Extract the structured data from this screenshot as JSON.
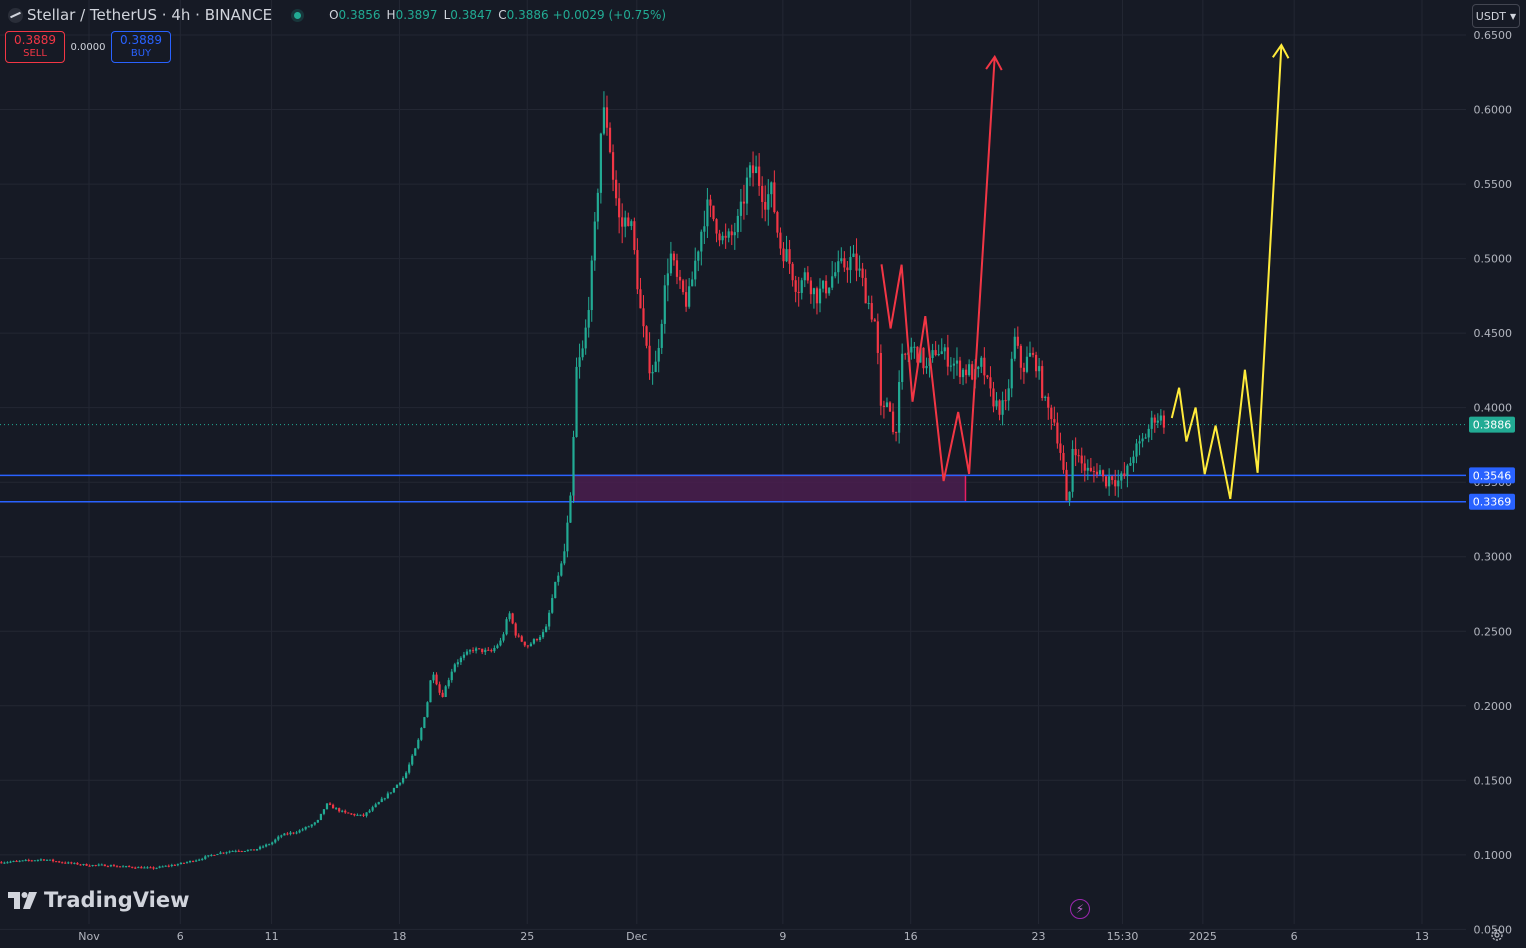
{
  "header": {
    "symbol_title": "Stellar / TetherUS · 4h · BINANCE",
    "ohlc": {
      "o_label": "O",
      "o": "0.3856",
      "h_label": "H",
      "h": "0.3897",
      "l_label": "L",
      "l": "0.3847",
      "c_label": "C",
      "c": "0.3886",
      "change": "+0.0029 (+0.75%)"
    }
  },
  "trade": {
    "sell_price": "0.3889",
    "sell_label": "SELL",
    "spread": "0.0000",
    "buy_price": "0.3889",
    "buy_label": "BUY"
  },
  "currency": "USDT",
  "logo_text": "TradingView",
  "colors": {
    "background": "#161a25",
    "grid": "#232733",
    "up": "#22ab94",
    "down": "#f23645",
    "level_line": "#2962ff",
    "zone_fill": "#4a1e4f",
    "zone_border": "#e91e63",
    "projection_red": "#f23645",
    "projection_yellow": "#ffeb3b",
    "axis_text": "#b2b5be"
  },
  "chart_data": {
    "type": "candlestick",
    "symbol": "XLMUSDT",
    "interval": "4h",
    "exchange": "BINANCE",
    "ylim": [
      0.0375,
      0.6735
    ],
    "y_ticks": [
      "0.6500",
      "0.6000",
      "0.5500",
      "0.5000",
      "0.4500",
      "0.4000",
      "0.3500",
      "0.3000",
      "0.2500",
      "0.2000",
      "0.1500",
      "0.1000",
      "0.0500"
    ],
    "x_ticks": [
      {
        "label": "Nov",
        "day": 0
      },
      {
        "label": "6",
        "day": 5
      },
      {
        "label": "11",
        "day": 10
      },
      {
        "label": "18",
        "day": 17
      },
      {
        "label": "25",
        "day": 24
      },
      {
        "label": "Dec",
        "day": 30
      },
      {
        "label": "9",
        "day": 38
      },
      {
        "label": "16",
        "day": 45
      },
      {
        "label": "23",
        "day": 52
      },
      {
        "label": "15:30",
        "day": 56.6
      },
      {
        "label": "2025",
        "day": 61
      },
      {
        "label": "6",
        "day": 66
      },
      {
        "label": "13",
        "day": 73
      }
    ],
    "price_path": [
      [
        -4.8,
        0.095
      ],
      [
        -3.5,
        0.096
      ],
      [
        -2.5,
        0.097
      ],
      [
        -1.5,
        0.095
      ],
      [
        0,
        0.093
      ],
      [
        1,
        0.093
      ],
      [
        2,
        0.092
      ],
      [
        3.5,
        0.091
      ],
      [
        5,
        0.094
      ],
      [
        6,
        0.097
      ],
      [
        7,
        0.101
      ],
      [
        8,
        0.103
      ],
      [
        9,
        0.103
      ],
      [
        10,
        0.108
      ],
      [
        10.5,
        0.113
      ],
      [
        11.5,
        0.116
      ],
      [
        12.5,
        0.122
      ],
      [
        13,
        0.134
      ],
      [
        14,
        0.128
      ],
      [
        15,
        0.126
      ],
      [
        15.5,
        0.131
      ],
      [
        16.5,
        0.142
      ],
      [
        17.3,
        0.153
      ],
      [
        18,
        0.175
      ],
      [
        18.5,
        0.2
      ],
      [
        18.8,
        0.225
      ],
      [
        19.3,
        0.205
      ],
      [
        20,
        0.228
      ],
      [
        21,
        0.238
      ],
      [
        22,
        0.236
      ],
      [
        22.6,
        0.244
      ],
      [
        23,
        0.263
      ],
      [
        23.4,
        0.247
      ],
      [
        24,
        0.24
      ],
      [
        25,
        0.25
      ],
      [
        25.5,
        0.28
      ],
      [
        26,
        0.3
      ],
      [
        26.4,
        0.34
      ],
      [
        26.7,
        0.425
      ],
      [
        27.1,
        0.44
      ],
      [
        27.6,
        0.5
      ],
      [
        27.9,
        0.555
      ],
      [
        28.1,
        0.6
      ],
      [
        28.4,
        0.59
      ],
      [
        28.7,
        0.555
      ],
      [
        29.1,
        0.52
      ],
      [
        29.6,
        0.53
      ],
      [
        29.9,
        0.5
      ],
      [
        30.2,
        0.465
      ],
      [
        30.6,
        0.43
      ],
      [
        31.0,
        0.425
      ],
      [
        31.4,
        0.465
      ],
      [
        31.8,
        0.505
      ],
      [
        32.3,
        0.48
      ],
      [
        32.8,
        0.47
      ],
      [
        33.3,
        0.505
      ],
      [
        33.8,
        0.535
      ],
      [
        34.3,
        0.525
      ],
      [
        34.8,
        0.51
      ],
      [
        35.2,
        0.515
      ],
      [
        35.6,
        0.525
      ],
      [
        36.1,
        0.555
      ],
      [
        36.5,
        0.56
      ],
      [
        37.0,
        0.54
      ],
      [
        37.4,
        0.545
      ],
      [
        37.8,
        0.51
      ],
      [
        38.3,
        0.5
      ],
      [
        38.8,
        0.48
      ],
      [
        39.3,
        0.49
      ],
      [
        39.8,
        0.475
      ],
      [
        40.3,
        0.48
      ],
      [
        40.8,
        0.49
      ],
      [
        41.3,
        0.495
      ],
      [
        41.8,
        0.5
      ],
      [
        42.2,
        0.49
      ],
      [
        42.7,
        0.47
      ],
      [
        43.1,
        0.455
      ],
      [
        43.4,
        0.39
      ],
      [
        43.8,
        0.41
      ],
      [
        44.1,
        0.375
      ],
      [
        44.5,
        0.43
      ],
      [
        45.0,
        0.44
      ],
      [
        45.5,
        0.435
      ],
      [
        45.9,
        0.425
      ],
      [
        46.4,
        0.44
      ],
      [
        46.9,
        0.435
      ],
      [
        47.3,
        0.43
      ],
      [
        47.8,
        0.425
      ],
      [
        48.2,
        0.425
      ],
      [
        48.6,
        0.42
      ],
      [
        48.9,
        0.43
      ],
      [
        49.3,
        0.41
      ],
      [
        49.8,
        0.4
      ],
      [
        50.2,
        0.4
      ],
      [
        50.7,
        0.445
      ],
      [
        51.1,
        0.425
      ],
      [
        51.5,
        0.435
      ],
      [
        51.9,
        0.43
      ],
      [
        52.4,
        0.4
      ],
      [
        52.8,
        0.395
      ],
      [
        53.3,
        0.365
      ],
      [
        53.6,
        0.325
      ],
      [
        53.9,
        0.38
      ],
      [
        54.2,
        0.365
      ],
      [
        54.5,
        0.36
      ],
      [
        54.9,
        0.355
      ],
      [
        55.3,
        0.36
      ],
      [
        55.6,
        0.35
      ],
      [
        56.0,
        0.355
      ],
      [
        56.3,
        0.35
      ],
      [
        56.8,
        0.355
      ],
      [
        57.2,
        0.37
      ],
      [
        57.6,
        0.375
      ],
      [
        58.0,
        0.385
      ],
      [
        58.4,
        0.395
      ],
      [
        58.8,
        0.392
      ],
      [
        59.0,
        0.3886
      ]
    ],
    "levels": [
      {
        "price": 0.3546,
        "label": "0.3546"
      },
      {
        "price": 0.3369,
        "label": "0.3369"
      }
    ],
    "last_price": {
      "price": 0.3886,
      "label": "0.3886"
    },
    "zone": {
      "day_start": 26.55,
      "day_end": 48.0,
      "top": 0.3546,
      "bottom": 0.3369
    },
    "red_projection": [
      [
        43.4,
        0.4962
      ],
      [
        43.9,
        0.4531
      ],
      [
        44.5,
        0.4959
      ],
      [
        45.1,
        0.404
      ],
      [
        45.8,
        0.4614
      ],
      [
        46.8,
        0.3508
      ],
      [
        47.6,
        0.3971
      ],
      [
        48.2,
        0.3556
      ],
      [
        49.6,
        0.6354
      ]
    ],
    "yellow_projection": [
      [
        59.3,
        0.3931
      ],
      [
        59.7,
        0.4134
      ],
      [
        60.1,
        0.3773
      ],
      [
        60.6,
        0.4001
      ],
      [
        61.1,
        0.3554
      ],
      [
        61.7,
        0.388
      ],
      [
        62.5,
        0.3388
      ],
      [
        63.3,
        0.4255
      ],
      [
        64.0,
        0.3563
      ],
      [
        65.3,
        0.6433
      ]
    ]
  }
}
